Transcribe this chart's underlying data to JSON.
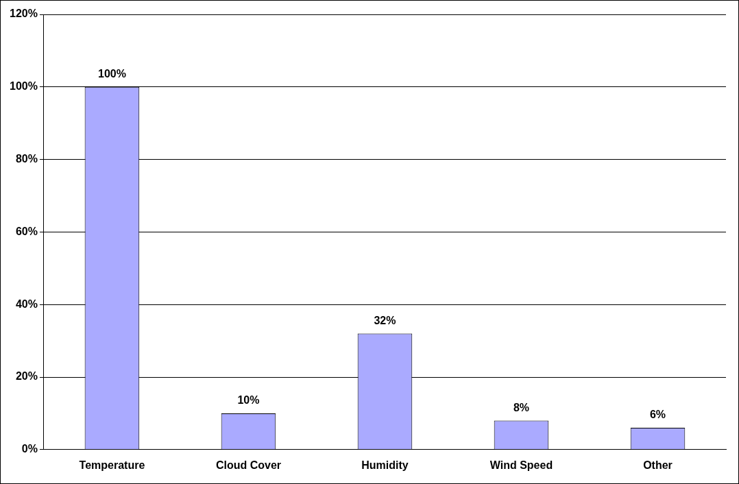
{
  "chart_data": {
    "type": "bar",
    "categories": [
      "Temperature",
      "Cloud Cover",
      "Humidity",
      "Wind Speed",
      "Other"
    ],
    "values": [
      100,
      10,
      32,
      8,
      6
    ],
    "value_labels": [
      "100%",
      "10%",
      "32%",
      "8%",
      "6%"
    ],
    "color": "#aaaaff",
    "ylim": [
      0,
      120
    ],
    "yticks": [
      {
        "value": 0,
        "label": "0%"
      },
      {
        "value": 20,
        "label": "20%"
      },
      {
        "value": 40,
        "label": "40%"
      },
      {
        "value": 60,
        "label": "60%"
      },
      {
        "value": 80,
        "label": "80%"
      },
      {
        "value": 100,
        "label": "100%"
      },
      {
        "value": 120,
        "label": "120%"
      }
    ],
    "grid": "y"
  }
}
